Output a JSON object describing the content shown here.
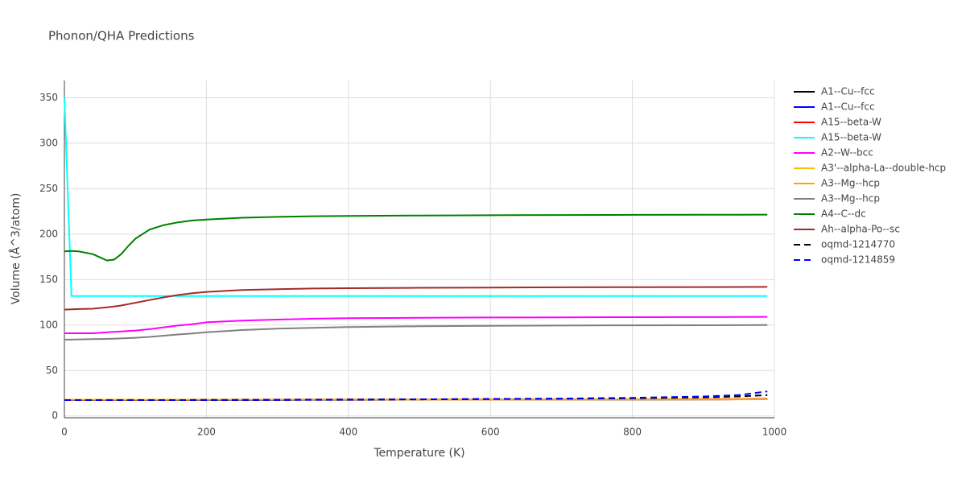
{
  "chart_data": {
    "type": "line",
    "title": "Phonon/QHA Predictions",
    "x_label": "Temperature (K)",
    "y_label": "Volume (Å^3/atom)",
    "x": [
      0,
      10,
      20,
      40,
      60,
      70,
      80,
      90,
      100,
      120,
      140,
      160,
      180,
      200,
      250,
      300,
      350,
      400,
      500,
      600,
      700,
      800,
      900,
      950,
      990
    ],
    "xlim": [
      0,
      1000
    ],
    "xticks": [
      0,
      200,
      400,
      600,
      800,
      1000
    ],
    "ylim": [
      -2,
      369
    ],
    "yticks": [
      0,
      50,
      100,
      150,
      200,
      250,
      300,
      350
    ],
    "grid": true,
    "legend": "right",
    "series": [
      {
        "name": "A1--Cu--fcc",
        "color": "#000000",
        "dash": "solid",
        "values": [
          17.6,
          17.6,
          17.6,
          17.6,
          17.6,
          17.6,
          17.6,
          17.6,
          17.6,
          17.6,
          17.6,
          17.6,
          17.6,
          17.7,
          17.7,
          17.7,
          17.8,
          17.8,
          17.9,
          18,
          18.1,
          18.2,
          18.3,
          18.4,
          18.5
        ]
      },
      {
        "name": "A1--Cu--fcc",
        "color": "#0000ff",
        "dash": "solid",
        "values": [
          17.6,
          17.6,
          17.6,
          17.6,
          17.6,
          17.6,
          17.6,
          17.6,
          17.6,
          17.6,
          17.6,
          17.6,
          17.6,
          17.7,
          17.7,
          17.7,
          17.8,
          17.8,
          17.9,
          18,
          18.1,
          18.2,
          18.3,
          18.4,
          18.5
        ]
      },
      {
        "name": "A15--beta-W",
        "color": "#ff0000",
        "dash": "solid",
        "values": [
          17.8,
          17.8,
          17.8,
          17.8,
          17.8,
          17.8,
          17.8,
          17.8,
          17.8,
          17.8,
          17.8,
          17.8,
          17.8,
          17.9,
          17.9,
          17.9,
          18,
          18,
          18.1,
          18.2,
          18.3,
          18.4,
          18.5,
          18.6,
          18.7
        ]
      },
      {
        "name": "A15--beta-W",
        "color": "#00ffff",
        "dash": "solid",
        "values": [
          350,
          132,
          132,
          132,
          132,
          132,
          132,
          132,
          132,
          132,
          132,
          132,
          132,
          132,
          132,
          132,
          132,
          132,
          132,
          132,
          132,
          132,
          132,
          132,
          132
        ]
      },
      {
        "name": "A2--W--bcc",
        "color": "#ff00ff",
        "dash": "solid",
        "values": [
          91,
          91,
          91,
          91,
          92,
          92.5,
          93,
          93.5,
          94,
          95.5,
          97.5,
          99.5,
          101,
          103,
          105,
          106,
          107,
          107.5,
          108,
          108.3,
          108.5,
          108.7,
          108.8,
          108.9,
          109
        ]
      },
      {
        "name": "A3'--alpha-La--double-hcp",
        "color": "#ffbf00",
        "dash": "solid",
        "values": [
          17.9,
          17.9,
          17.9,
          17.9,
          17.9,
          17.9,
          17.9,
          17.9,
          17.9,
          17.9,
          17.9,
          17.9,
          17.9,
          18,
          18,
          18,
          18,
          18.1,
          18.1,
          18.2,
          18.2,
          18.3,
          18.3,
          18.4,
          18.4
        ]
      },
      {
        "name": "A3--Mg--hcp",
        "color": "#ffa500",
        "dash": "solid",
        "values": [
          17.8,
          17.8,
          17.8,
          17.8,
          17.8,
          17.8,
          17.8,
          17.8,
          17.8,
          17.8,
          17.8,
          17.8,
          17.8,
          17.9,
          17.9,
          17.9,
          18,
          18,
          18.1,
          18.1,
          18.2,
          18.2,
          18.3,
          18.3,
          18.4
        ]
      },
      {
        "name": "A3--Mg--hcp",
        "color": "#808080",
        "dash": "solid",
        "values": [
          84,
          84,
          84.2,
          84.5,
          84.8,
          85,
          85.3,
          85.7,
          86,
          87,
          88.3,
          89.6,
          90.8,
          92,
          94.5,
          96,
          97,
          97.8,
          98.7,
          99.2,
          99.5,
          99.7,
          99.8,
          99.9,
          100
        ]
      },
      {
        "name": "A4--C--dc",
        "color": "#008000",
        "dash": "solid",
        "values": [
          181,
          181.5,
          181,
          178,
          171,
          172,
          178,
          187,
          195,
          205,
          210,
          213,
          215,
          216,
          218,
          219,
          219.7,
          220,
          220.5,
          220.8,
          221,
          221.2,
          221.3,
          221.4,
          221.5
        ]
      },
      {
        "name": "Ah--alpha-Po--sc",
        "color": "#a52a2a",
        "dash": "solid",
        "values": [
          117,
          117.3,
          117.6,
          118,
          119.5,
          120.5,
          121.5,
          123,
          124.5,
          127.5,
          130.5,
          133,
          135,
          136.5,
          138.5,
          139.5,
          140.2,
          140.6,
          141,
          141.3,
          141.5,
          141.7,
          141.8,
          141.9,
          142
        ]
      },
      {
        "name": "oqmd-1214770",
        "color": "#000000",
        "dash": "dash",
        "values": [
          17.5,
          17.5,
          17.5,
          17.5,
          17.5,
          17.5,
          17.5,
          17.5,
          17.5,
          17.5,
          17.5,
          17.5,
          17.6,
          17.6,
          17.7,
          17.8,
          17.9,
          18,
          18.3,
          18.6,
          19,
          19.5,
          20.5,
          21.5,
          23
        ]
      },
      {
        "name": "oqmd-1214859",
        "color": "#0000ff",
        "dash": "dash",
        "values": [
          17.5,
          17.5,
          17.5,
          17.5,
          17.5,
          17.5,
          17.5,
          17.5,
          17.5,
          17.5,
          17.5,
          17.5,
          17.6,
          17.6,
          17.7,
          17.8,
          17.9,
          18,
          18.3,
          18.7,
          19.2,
          20,
          21.5,
          23,
          27
        ]
      }
    ]
  }
}
